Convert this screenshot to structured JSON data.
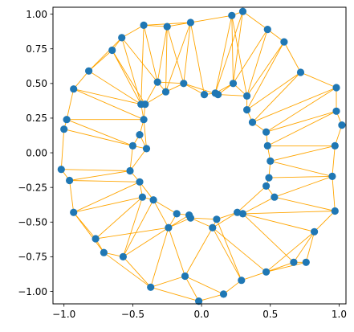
{
  "chart_data": {
    "type": "scatter",
    "title": "",
    "xlabel": "",
    "ylabel": "",
    "xlim": [
      -1.08,
      1.05
    ],
    "ylim": [
      -1.09,
      1.05
    ],
    "xticks": [
      -1.0,
      -0.5,
      0.0,
      0.5,
      1.0
    ],
    "yticks": [
      1.0,
      0.75,
      0.5,
      0.25,
      0.0,
      -0.25,
      -0.5,
      -0.75,
      -1.0
    ],
    "xtick_labels": [
      "−1.0",
      "−0.5",
      "0.0",
      "0.5",
      "1.0"
    ],
    "ytick_labels": [
      "1.00",
      "0.75",
      "0.50",
      "0.25",
      "0.00",
      "−0.25",
      "−0.50",
      "−0.75",
      "−1.00"
    ],
    "grid": false,
    "colors": {
      "points": "#1f77b4",
      "edges": "#ffa500"
    },
    "points": [
      {
        "x": 0.3,
        "y": 1.02
      },
      {
        "x": 0.22,
        "y": 0.99
      },
      {
        "x": -0.08,
        "y": 0.94
      },
      {
        "x": -0.25,
        "y": 0.91
      },
      {
        "x": -0.42,
        "y": 0.92
      },
      {
        "x": 0.48,
        "y": 0.89
      },
      {
        "x": -0.58,
        "y": 0.83
      },
      {
        "x": 0.6,
        "y": 0.8
      },
      {
        "x": -0.65,
        "y": 0.74
      },
      {
        "x": -0.82,
        "y": 0.59
      },
      {
        "x": 0.72,
        "y": 0.58
      },
      {
        "x": -0.32,
        "y": 0.51
      },
      {
        "x": -0.13,
        "y": 0.5
      },
      {
        "x": 0.23,
        "y": 0.5
      },
      {
        "x": -0.93,
        "y": 0.46
      },
      {
        "x": 0.98,
        "y": 0.47
      },
      {
        "x": -0.26,
        "y": 0.44
      },
      {
        "x": 0.02,
        "y": 0.42
      },
      {
        "x": 0.1,
        "y": 0.43
      },
      {
        "x": 0.12,
        "y": 0.42
      },
      {
        "x": 0.33,
        "y": 0.41
      },
      {
        "x": -0.44,
        "y": 0.35
      },
      {
        "x": -0.41,
        "y": 0.35
      },
      {
        "x": 0.33,
        "y": 0.31
      },
      {
        "x": 0.98,
        "y": 0.3
      },
      {
        "x": -0.98,
        "y": 0.24
      },
      {
        "x": -0.42,
        "y": 0.24
      },
      {
        "x": 0.37,
        "y": 0.22
      },
      {
        "x": 1.02,
        "y": 0.2
      },
      {
        "x": -1.0,
        "y": 0.17
      },
      {
        "x": 0.47,
        "y": 0.15
      },
      {
        "x": -0.45,
        "y": 0.13
      },
      {
        "x": -0.5,
        "y": 0.05
      },
      {
        "x": 0.48,
        "y": 0.05
      },
      {
        "x": 0.97,
        "y": 0.05
      },
      {
        "x": -0.4,
        "y": 0.03
      },
      {
        "x": 0.5,
        "y": -0.06
      },
      {
        "x": -1.02,
        "y": -0.12
      },
      {
        "x": -0.52,
        "y": -0.13
      },
      {
        "x": 0.49,
        "y": -0.18
      },
      {
        "x": 0.95,
        "y": -0.17
      },
      {
        "x": -0.96,
        "y": -0.2
      },
      {
        "x": -0.45,
        "y": -0.21
      },
      {
        "x": 0.47,
        "y": -0.24
      },
      {
        "x": 0.53,
        "y": -0.32
      },
      {
        "x": -0.43,
        "y": -0.32
      },
      {
        "x": -0.35,
        "y": -0.34
      },
      {
        "x": 0.26,
        "y": -0.43
      },
      {
        "x": 0.3,
        "y": -0.44
      },
      {
        "x": -0.18,
        "y": -0.44
      },
      {
        "x": -0.09,
        "y": -0.45
      },
      {
        "x": -0.08,
        "y": -0.47
      },
      {
        "x": 0.11,
        "y": -0.48
      },
      {
        "x": -0.93,
        "y": -0.43
      },
      {
        "x": 0.97,
        "y": -0.42
      },
      {
        "x": -0.24,
        "y": -0.54
      },
      {
        "x": 0.08,
        "y": -0.54
      },
      {
        "x": 0.82,
        "y": -0.57
      },
      {
        "x": -0.77,
        "y": -0.62
      },
      {
        "x": -0.71,
        "y": -0.72
      },
      {
        "x": -0.57,
        "y": -0.75
      },
      {
        "x": 0.67,
        "y": -0.79
      },
      {
        "x": 0.76,
        "y": -0.79
      },
      {
        "x": 0.47,
        "y": -0.86
      },
      {
        "x": -0.12,
        "y": -0.89
      },
      {
        "x": 0.29,
        "y": -0.92
      },
      {
        "x": -0.37,
        "y": -0.97
      },
      {
        "x": 0.16,
        "y": -1.02
      },
      {
        "x": -0.02,
        "y": -1.07
      }
    ],
    "edges": [
      [
        0,
        1
      ],
      [
        0,
        5
      ],
      [
        0,
        13
      ],
      [
        0,
        18
      ],
      [
        1,
        2
      ],
      [
        1,
        13
      ],
      [
        1,
        18
      ],
      [
        1,
        20
      ],
      [
        2,
        3
      ],
      [
        2,
        4
      ],
      [
        2,
        12
      ],
      [
        2,
        16
      ],
      [
        2,
        17
      ],
      [
        3,
        4
      ],
      [
        3,
        11
      ],
      [
        3,
        16
      ],
      [
        4,
        6
      ],
      [
        4,
        11
      ],
      [
        4,
        21
      ],
      [
        5,
        7
      ],
      [
        5,
        13
      ],
      [
        5,
        20
      ],
      [
        6,
        8
      ],
      [
        6,
        11
      ],
      [
        6,
        21
      ],
      [
        7,
        10
      ],
      [
        7,
        20
      ],
      [
        7,
        23
      ],
      [
        8,
        9
      ],
      [
        8,
        21
      ],
      [
        8,
        22
      ],
      [
        9,
        14
      ],
      [
        9,
        21
      ],
      [
        10,
        15
      ],
      [
        10,
        23
      ],
      [
        10,
        27
      ],
      [
        11,
        12
      ],
      [
        11,
        16
      ],
      [
        11,
        22
      ],
      [
        12,
        16
      ],
      [
        12,
        17
      ],
      [
        12,
        19
      ],
      [
        13,
        18
      ],
      [
        13,
        19
      ],
      [
        13,
        20
      ],
      [
        14,
        25
      ],
      [
        14,
        21
      ],
      [
        14,
        26
      ],
      [
        15,
        24
      ],
      [
        15,
        27
      ],
      [
        15,
        30
      ],
      [
        16,
        22
      ],
      [
        17,
        18
      ],
      [
        18,
        19
      ],
      [
        19,
        20
      ],
      [
        20,
        23
      ],
      [
        21,
        22
      ],
      [
        21,
        26
      ],
      [
        22,
        26
      ],
      [
        23,
        27
      ],
      [
        24,
        28
      ],
      [
        24,
        30
      ],
      [
        24,
        33
      ],
      [
        25,
        29
      ],
      [
        25,
        26
      ],
      [
        25,
        32
      ],
      [
        26,
        31
      ],
      [
        26,
        35
      ],
      [
        27,
        30
      ],
      [
        28,
        34
      ],
      [
        29,
        37
      ],
      [
        29,
        32
      ],
      [
        30,
        33
      ],
      [
        31,
        32
      ],
      [
        31,
        35
      ],
      [
        32,
        35
      ],
      [
        32,
        38
      ],
      [
        33,
        34
      ],
      [
        33,
        36
      ],
      [
        34,
        36
      ],
      [
        34,
        40
      ],
      [
        35,
        38
      ],
      [
        36,
        39
      ],
      [
        36,
        40
      ],
      [
        37,
        41
      ],
      [
        37,
        38
      ],
      [
        38,
        41
      ],
      [
        38,
        42
      ],
      [
        39,
        43
      ],
      [
        39,
        40
      ],
      [
        40,
        44
      ],
      [
        40,
        54
      ],
      [
        41,
        53
      ],
      [
        41,
        42
      ],
      [
        42,
        45
      ],
      [
        42,
        53
      ],
      [
        43,
        44
      ],
      [
        43,
        47
      ],
      [
        44,
        48
      ],
      [
        44,
        54
      ],
      [
        45,
        46
      ],
      [
        45,
        53
      ],
      [
        45,
        58
      ],
      [
        46,
        49
      ],
      [
        46,
        55
      ],
      [
        46,
        60
      ],
      [
        47,
        48
      ],
      [
        47,
        52
      ],
      [
        47,
        56
      ],
      [
        48,
        57
      ],
      [
        48,
        54
      ],
      [
        48,
        61
      ],
      [
        49,
        50
      ],
      [
        49,
        55
      ],
      [
        50,
        51
      ],
      [
        51,
        52
      ],
      [
        51,
        55
      ],
      [
        51,
        56
      ],
      [
        52,
        56
      ],
      [
        53,
        58
      ],
      [
        54,
        57
      ],
      [
        55,
        58
      ],
      [
        55,
        60
      ],
      [
        55,
        64
      ],
      [
        55,
        66
      ],
      [
        56,
        65
      ],
      [
        56,
        63
      ],
      [
        56,
        64
      ],
      [
        57,
        62
      ],
      [
        57,
        61
      ],
      [
        58,
        59
      ],
      [
        59,
        60
      ],
      [
        59,
        66
      ],
      [
        60,
        66
      ],
      [
        61,
        62
      ],
      [
        61,
        63
      ],
      [
        62,
        63
      ],
      [
        63,
        65
      ],
      [
        64,
        66
      ],
      [
        64,
        68
      ],
      [
        64,
        67
      ],
      [
        65,
        67
      ],
      [
        66,
        68
      ],
      [
        67,
        68
      ],
      [
        57,
        63
      ],
      [
        53,
        59
      ],
      [
        45,
        60
      ],
      [
        52,
        65
      ],
      [
        50,
        55
      ],
      [
        42,
        46
      ],
      [
        3,
        12
      ],
      [
        6,
        9
      ]
    ]
  }
}
